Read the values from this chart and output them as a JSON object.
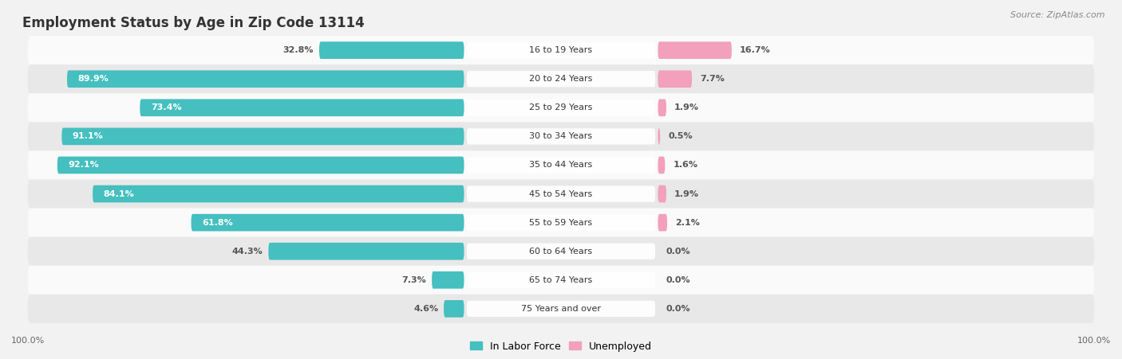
{
  "title": "Employment Status by Age in Zip Code 13114",
  "source": "Source: ZipAtlas.com",
  "categories": [
    "16 to 19 Years",
    "20 to 24 Years",
    "25 to 29 Years",
    "30 to 34 Years",
    "35 to 44 Years",
    "45 to 54 Years",
    "55 to 59 Years",
    "60 to 64 Years",
    "65 to 74 Years",
    "75 Years and over"
  ],
  "labor_force": [
    32.8,
    89.9,
    73.4,
    91.1,
    92.1,
    84.1,
    61.8,
    44.3,
    7.3,
    4.6
  ],
  "unemployed": [
    16.7,
    7.7,
    1.9,
    0.5,
    1.6,
    1.9,
    2.1,
    0.0,
    0.0,
    0.0
  ],
  "labor_color": "#45BFBF",
  "unemployed_color": "#F2A0BB",
  "background_color": "#f2f2f2",
  "row_light": "#fafafa",
  "row_dark": "#e8e8e8",
  "axis_label_left": "100.0%",
  "axis_label_right": "100.0%",
  "title_fontsize": 12,
  "legend_fontsize": 9,
  "value_fontsize": 8,
  "category_fontsize": 8
}
